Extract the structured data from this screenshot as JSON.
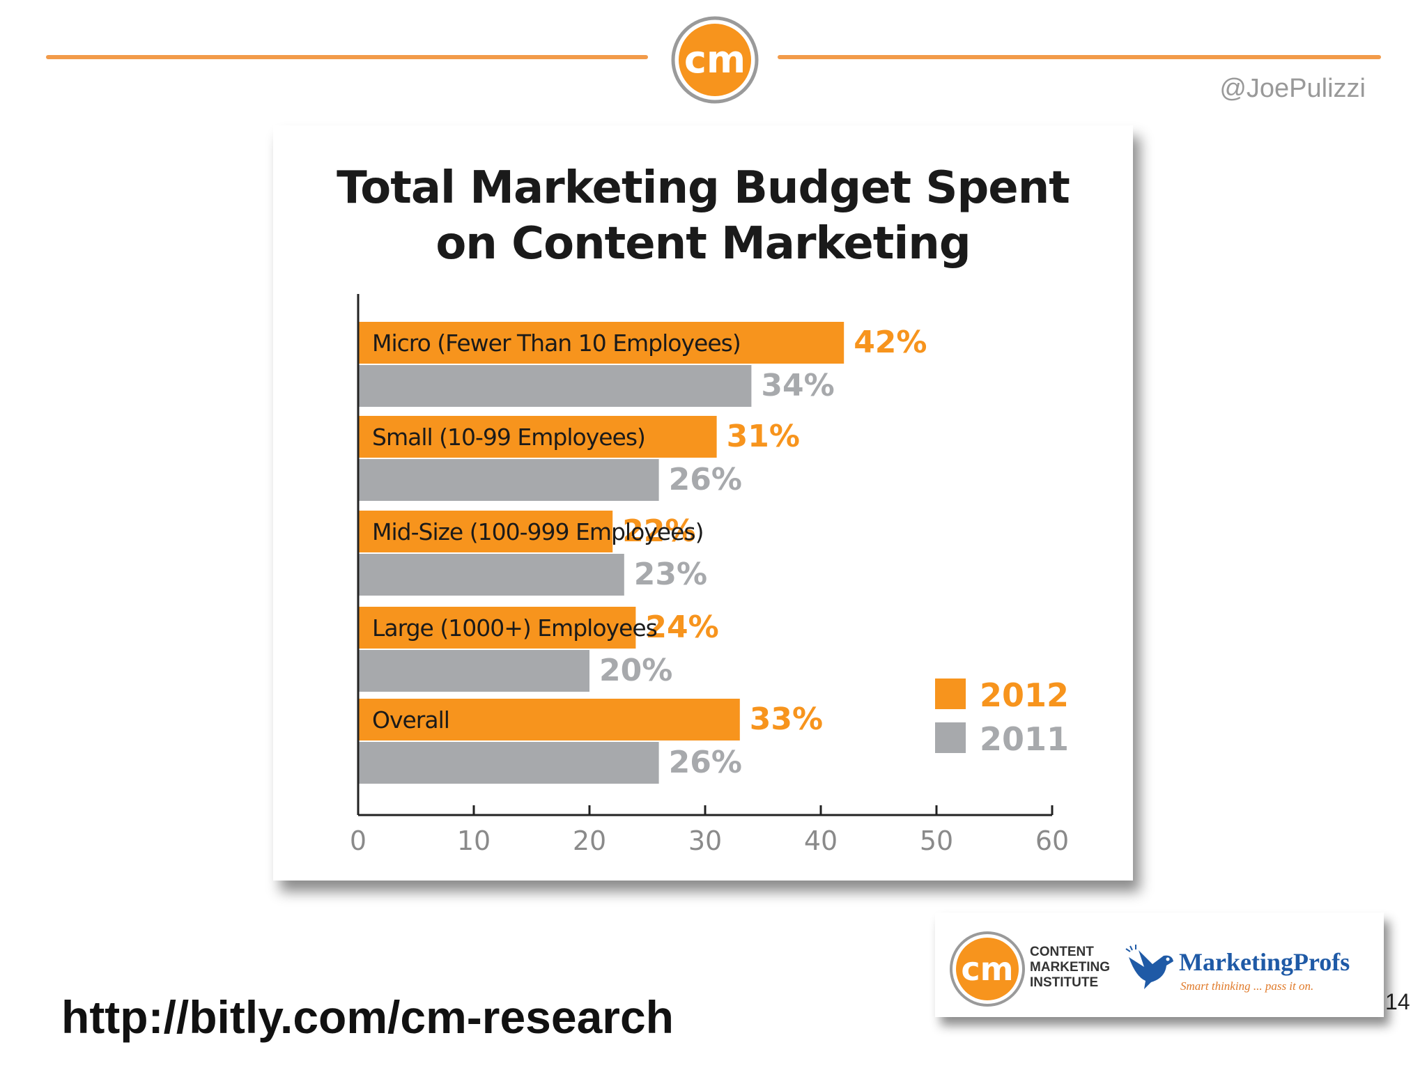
{
  "header": {
    "handle": "@JoePulizzi",
    "logo_text": "cm"
  },
  "chart_data": {
    "type": "bar",
    "orientation": "horizontal",
    "title_line1": "Total Marketing Budget Spent",
    "title_line2": "on Content Marketing",
    "categories": [
      "Micro (Fewer Than 10 Employees)",
      "Small (10-99 Employees)",
      "Mid-Size (100-999 Employees)",
      "Large (1000+) Employees",
      "Overall"
    ],
    "series": [
      {
        "name": "2012",
        "color": "#f7941d",
        "values": [
          42,
          31,
          22,
          24,
          33
        ],
        "labels": [
          "42%",
          "31%",
          "22%",
          "24%",
          "33%"
        ]
      },
      {
        "name": "2011",
        "color": "#a7a9ac",
        "values": [
          34,
          26,
          23,
          20,
          26
        ],
        "labels": [
          "34%",
          "26%",
          "23%",
          "20%",
          "26%"
        ]
      }
    ],
    "xlim": [
      0,
      60
    ],
    "xticks": [
      "0",
      "10",
      "20",
      "30",
      "40",
      "50",
      "60"
    ],
    "grid": false,
    "legend_position": "bottom-right"
  },
  "footer": {
    "url": "http://bitly.com/cm-research",
    "page_number": "14",
    "cmi_logo_text": "cm",
    "cmi_line1": "CONTENT",
    "cmi_line2": "MARKETING",
    "cmi_line3": "INSTITUTE",
    "mp_name": "MarketingProfs",
    "mp_tagline": "Smart thinking ... pass it on."
  }
}
